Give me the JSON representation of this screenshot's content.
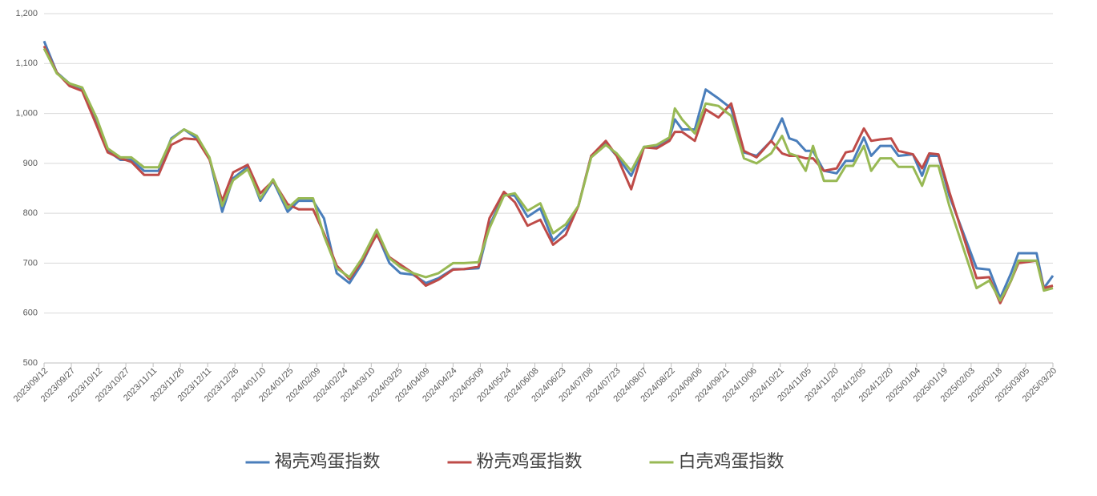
{
  "chart_data": {
    "type": "line",
    "x": [
      "2023/09/12",
      "2023/09/19",
      "2023/09/26",
      "2023/10/03",
      "2023/10/11",
      "2023/10/17",
      "2023/10/24",
      "2023/10/30",
      "2023/11/06",
      "2023/11/14",
      "2023/11/21",
      "2023/11/28",
      "2023/12/05",
      "2023/12/12",
      "2023/12/19",
      "2023/12/25",
      "2024/01/02",
      "2024/01/09",
      "2024/01/16",
      "2024/01/24",
      "2024/01/30",
      "2024/02/07",
      "2024/02/13",
      "2024/02/20",
      "2024/02/27",
      "2024/03/05",
      "2024/03/13",
      "2024/03/20",
      "2024/03/26",
      "2024/04/02",
      "2024/04/09",
      "2024/04/16",
      "2024/04/24",
      "2024/04/30",
      "2024/05/08",
      "2024/05/14",
      "2024/05/22",
      "2024/05/28",
      "2024/06/04",
      "2024/06/11",
      "2024/06/18",
      "2024/06/25",
      "2024/07/02",
      "2024/07/09",
      "2024/07/17",
      "2024/07/23",
      "2024/07/31",
      "2024/08/07",
      "2024/08/14",
      "2024/08/21",
      "2024/08/24",
      "2024/08/28",
      "2024/09/04",
      "2024/09/10",
      "2024/09/17",
      "2024/09/24",
      "2024/10/01",
      "2024/10/08",
      "2024/10/16",
      "2024/10/22",
      "2024/10/26",
      "2024/10/30",
      "2024/11/04",
      "2024/11/08",
      "2024/11/14",
      "2024/11/21",
      "2024/11/26",
      "2024/11/30",
      "2024/12/06",
      "2024/12/10",
      "2024/12/15",
      "2024/12/21",
      "2024/12/25",
      "2025/01/02",
      "2025/01/07",
      "2025/01/11",
      "2025/01/16",
      "2025/01/22",
      "2025/02/06",
      "2025/02/13",
      "2025/02/19",
      "2025/02/25",
      "2025/03/01",
      "2025/03/11",
      "2025/03/15",
      "2025/03/20"
    ],
    "series": [
      {
        "name": "褐壳鸡蛋指数",
        "color": "#4a7ebb",
        "values": [
          1145,
          1082,
          1060,
          1050,
          985,
          925,
          907,
          907,
          885,
          885,
          950,
          968,
          950,
          910,
          803,
          870,
          893,
          825,
          865,
          803,
          825,
          825,
          790,
          680,
          660,
          700,
          760,
          700,
          680,
          677,
          660,
          670,
          688,
          688,
          690,
          775,
          838,
          835,
          793,
          810,
          745,
          770,
          815,
          915,
          940,
          915,
          875,
          933,
          935,
          950,
          988,
          968,
          968,
          1048,
          1030,
          1010,
          922,
          915,
          945,
          990,
          950,
          945,
          925,
          925,
          885,
          880,
          905,
          905,
          952,
          915,
          935,
          935,
          915,
          918,
          875,
          915,
          915,
          835,
          690,
          687,
          630,
          680,
          720,
          720,
          650,
          675
        ]
      },
      {
        "name": "粉壳鸡蛋指数",
        "color": "#be4b48",
        "values": [
          1135,
          1082,
          1055,
          1045,
          975,
          922,
          910,
          903,
          877,
          877,
          937,
          950,
          948,
          908,
          825,
          882,
          897,
          840,
          865,
          818,
          808,
          808,
          760,
          695,
          668,
          705,
          757,
          712,
          697,
          680,
          655,
          667,
          687,
          688,
          693,
          790,
          843,
          822,
          775,
          787,
          737,
          757,
          815,
          915,
          945,
          915,
          848,
          932,
          930,
          945,
          963,
          963,
          945,
          1008,
          992,
          1020,
          925,
          912,
          945,
          920,
          915,
          915,
          910,
          910,
          885,
          890,
          922,
          925,
          970,
          945,
          948,
          950,
          925,
          918,
          890,
          920,
          918,
          843,
          670,
          672,
          620,
          665,
          700,
          705,
          650,
          655
        ]
      },
      {
        "name": "白壳鸡蛋指数",
        "color": "#98b954",
        "values": [
          1130,
          1080,
          1060,
          1052,
          990,
          930,
          912,
          912,
          892,
          892,
          948,
          968,
          955,
          912,
          815,
          866,
          888,
          830,
          868,
          810,
          830,
          830,
          755,
          690,
          672,
          710,
          767,
          710,
          692,
          680,
          672,
          680,
          700,
          700,
          702,
          770,
          835,
          840,
          805,
          820,
          760,
          778,
          815,
          912,
          937,
          920,
          885,
          933,
          937,
          952,
          1010,
          988,
          960,
          1020,
          1015,
          995,
          910,
          900,
          920,
          955,
          920,
          915,
          885,
          935,
          865,
          865,
          895,
          895,
          935,
          885,
          910,
          910,
          893,
          893,
          855,
          895,
          895,
          815,
          650,
          665,
          625,
          665,
          705,
          705,
          645,
          650
        ]
      }
    ],
    "xlim": [
      "2023/09/12",
      "2025/03/20"
    ],
    "xticks": [
      "2023/09/12",
      "2023/09/27",
      "2023/10/12",
      "2023/10/27",
      "2023/11/11",
      "2023/11/26",
      "2023/12/11",
      "2023/12/26",
      "2024/01/10",
      "2024/01/25",
      "2024/02/09",
      "2024/02/24",
      "2024/03/10",
      "2024/03/25",
      "2024/04/09",
      "2024/04/24",
      "2024/05/09",
      "2024/05/24",
      "2024/06/08",
      "2024/06/23",
      "2024/07/08",
      "2024/07/23",
      "2024/08/07",
      "2024/08/22",
      "2024/09/06",
      "2024/09/21",
      "2024/10/06",
      "2024/10/21",
      "2024/11/05",
      "2024/11/20",
      "2024/12/05",
      "2024/12/20",
      "2025/01/04",
      "2025/01/19",
      "2025/02/03",
      "2025/02/18",
      "2025/03/05",
      "2025/03/20"
    ],
    "ylim": [
      500,
      1200
    ],
    "yticks": [
      500,
      600,
      700,
      800,
      900,
      {
        "value": 1000,
        "label": "1,000"
      },
      {
        "value": 1100,
        "label": "1,100"
      },
      {
        "value": 1200,
        "label": "1,200"
      }
    ],
    "grid": true,
    "legend": "bottom"
  }
}
